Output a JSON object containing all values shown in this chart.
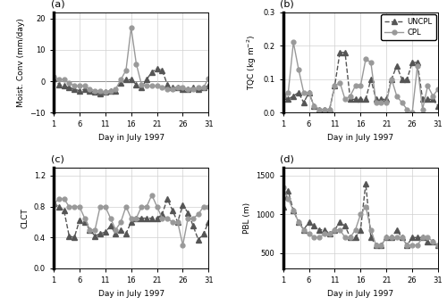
{
  "days": [
    1,
    2,
    3,
    4,
    5,
    6,
    7,
    8,
    9,
    10,
    11,
    12,
    13,
    14,
    15,
    16,
    17,
    18,
    19,
    20,
    21,
    22,
    23,
    24,
    25,
    26,
    27,
    28,
    29,
    30,
    31
  ],
  "moist_conv_cpl": [
    1.5,
    0.5,
    0.5,
    -0.5,
    -1.5,
    -1.5,
    -1.5,
    -2.5,
    -3.0,
    -3.0,
    -3.5,
    -3.0,
    -2.5,
    0.5,
    3.5,
    17.0,
    5.5,
    -1.0,
    -1.5,
    -1.5,
    -1.5,
    -2.0,
    -2.5,
    -2.5,
    -2.0,
    -2.0,
    -2.5,
    -2.5,
    -2.0,
    -2.0,
    1.0
  ],
  "moist_conv_uncpl": [
    1.0,
    -1.0,
    -1.5,
    -2.0,
    -2.5,
    -3.0,
    -2.5,
    -3.0,
    -3.5,
    -4.0,
    -3.5,
    -3.0,
    -3.0,
    -0.5,
    0.5,
    0.5,
    -1.0,
    -2.0,
    0.5,
    3.0,
    4.0,
    3.5,
    -1.0,
    -2.0,
    -2.0,
    -2.5,
    -2.5,
    -2.0,
    -2.5,
    -2.0,
    -1.5
  ],
  "tqc_cpl": [
    0.05,
    0.06,
    0.21,
    0.13,
    0.06,
    0.06,
    0.02,
    0.01,
    0.01,
    0.01,
    0.08,
    0.09,
    0.04,
    0.05,
    0.08,
    0.08,
    0.16,
    0.15,
    0.03,
    0.03,
    0.03,
    0.1,
    0.05,
    0.03,
    0.01,
    0.0,
    0.14,
    0.01,
    0.08,
    0.05,
    0.07
  ],
  "tqc_uncpl": [
    0.05,
    0.04,
    0.05,
    0.06,
    0.03,
    0.06,
    0.02,
    0.01,
    0.01,
    0.01,
    0.08,
    0.18,
    0.18,
    0.04,
    0.04,
    0.04,
    0.04,
    0.1,
    0.04,
    0.04,
    0.04,
    0.1,
    0.14,
    0.1,
    0.1,
    0.15,
    0.15,
    0.04,
    0.04,
    0.04,
    0.02
  ],
  "clct_cpl": [
    0.83,
    0.9,
    0.9,
    0.8,
    0.8,
    0.8,
    0.65,
    0.5,
    0.5,
    0.8,
    0.8,
    0.65,
    0.5,
    0.6,
    0.8,
    0.65,
    0.65,
    0.8,
    0.8,
    0.95,
    0.8,
    0.65,
    0.65,
    0.6,
    0.6,
    0.3,
    0.65,
    0.65,
    0.7,
    0.8,
    0.8
  ],
  "clct_uncpl": [
    0.84,
    0.8,
    0.75,
    0.42,
    0.4,
    0.62,
    0.6,
    0.5,
    0.42,
    0.45,
    0.47,
    0.55,
    0.45,
    0.5,
    0.45,
    0.6,
    0.65,
    0.65,
    0.65,
    0.65,
    0.65,
    0.7,
    0.9,
    0.75,
    0.6,
    0.82,
    0.72,
    0.55,
    0.37,
    0.45,
    0.6
  ],
  "pbl_cpl": [
    1350,
    1200,
    1050,
    900,
    800,
    750,
    700,
    700,
    750,
    750,
    800,
    800,
    700,
    700,
    800,
    1000,
    1100,
    800,
    600,
    600,
    700,
    700,
    700,
    700,
    600,
    600,
    600,
    700,
    700,
    650,
    600
  ],
  "pbl_uncpl": [
    1100,
    1300,
    1050,
    900,
    800,
    900,
    850,
    800,
    800,
    750,
    800,
    900,
    850,
    700,
    700,
    800,
    1400,
    700,
    600,
    600,
    700,
    700,
    800,
    700,
    600,
    700,
    700,
    700,
    650,
    650,
    600
  ],
  "cpl_color": "#999999",
  "uncpl_color": "#555555",
  "line_width": 1.0,
  "marker_size_cpl": 3.5,
  "marker_size_uncpl": 4.0,
  "xlabel": "Day in July 1997",
  "ylabel_a": "Moist. Conv (mm/day)",
  "ylabel_b": "TQC (kg m$^{-2}$)",
  "ylabel_c": "CLCT",
  "ylabel_d": "PBL (m)",
  "title_a": "(a)",
  "title_b": "(b)",
  "title_c": "(c)",
  "title_d": "(d)",
  "xticks": [
    1,
    6,
    11,
    16,
    21,
    26,
    31
  ],
  "ylim_a": [
    -10,
    22
  ],
  "yticks_a": [
    -10,
    0,
    10,
    20
  ],
  "ylim_b": [
    0,
    0.3
  ],
  "yticks_b": [
    0.0,
    0.1,
    0.2,
    0.3
  ],
  "ylim_c": [
    0,
    1.3
  ],
  "yticks_c": [
    0,
    0.4,
    0.8,
    1.2
  ],
  "ylim_d": [
    300,
    1600
  ],
  "yticks_d": [
    500,
    1000,
    1500
  ]
}
